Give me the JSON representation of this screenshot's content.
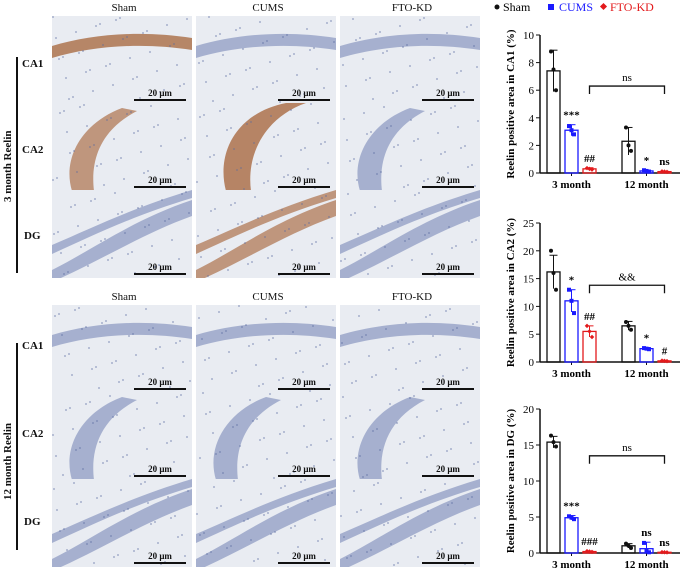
{
  "legend": [
    {
      "name": "Sham",
      "color": "#111111",
      "marker": "circle"
    },
    {
      "name": "CUMS",
      "color": "#1a1aff",
      "marker": "square"
    },
    {
      "name": "FTO-KD",
      "color": "#e31a1c",
      "marker": "diamond"
    }
  ],
  "micro": {
    "columns": [
      "Sham",
      "CUMS",
      "FTO-KD"
    ],
    "blocks": [
      {
        "title": "3 month Reelin",
        "rows": [
          "CA1",
          "CA2",
          "DG"
        ]
      },
      {
        "title": "12 month Reelin",
        "rows": [
          "CA1",
          "CA2",
          "DG"
        ]
      }
    ],
    "scale_label": "20 μm",
    "colors": {
      "background": "#e9ecf2",
      "hematoxylin": "#6f7fb3",
      "reelin_brown": "#a8683f"
    }
  },
  "chart_data": [
    {
      "type": "bar",
      "ylabel": "Reelin positive area in CA1 (%)",
      "ylim": [
        0,
        10
      ],
      "yticks": [
        0,
        2,
        4,
        6,
        8,
        10
      ],
      "categories": [
        "3 month",
        "12 month"
      ],
      "series": [
        {
          "name": "Sham",
          "values": [
            7.4,
            2.3
          ],
          "errors": [
            1.5,
            1.0
          ],
          "points": [
            [
              8.8,
              7.5,
              6.0
            ],
            [
              3.3,
              2.0,
              1.6
            ]
          ]
        },
        {
          "name": "CUMS",
          "values": [
            3.1,
            0.15
          ],
          "errors": [
            0.4,
            0.05
          ],
          "points": [
            [
              3.4,
              3.1,
              2.8
            ],
            [
              0.2,
              0.15,
              0.1
            ]
          ]
        },
        {
          "name": "FTO-KD",
          "values": [
            0.3,
            0.1
          ],
          "errors": [
            0.08,
            0.03
          ],
          "points": [
            [
              0.35,
              0.3,
              0.25
            ],
            [
              0.12,
              0.1,
              0.08
            ]
          ]
        }
      ],
      "annotations": [
        {
          "group": 0,
          "series": 1,
          "text": "***"
        },
        {
          "group": 0,
          "series": 2,
          "text": "##"
        },
        {
          "group": 1,
          "series": 1,
          "text": "*"
        },
        {
          "group": 1,
          "series": 2,
          "text": "ns"
        }
      ],
      "bracket": {
        "text": "ns",
        "y": 6.3
      }
    },
    {
      "type": "bar",
      "ylabel": "Reelin positive area in CA2 (%)",
      "ylim": [
        0,
        25
      ],
      "yticks": [
        0,
        5,
        10,
        15,
        20,
        25
      ],
      "categories": [
        "3 month",
        "12 month"
      ],
      "series": [
        {
          "name": "Sham",
          "values": [
            16.2,
            6.5
          ],
          "errors": [
            3.0,
            0.8
          ],
          "points": [
            [
              20.0,
              16.0,
              13.0
            ],
            [
              7.2,
              6.5,
              5.8
            ]
          ]
        },
        {
          "name": "CUMS",
          "values": [
            11.0,
            2.4
          ],
          "errors": [
            2.0,
            0.2
          ],
          "points": [
            [
              13.0,
              11.0,
              8.8
            ],
            [
              2.5,
              2.4,
              2.3
            ]
          ]
        },
        {
          "name": "FTO-KD",
          "values": [
            5.5,
            0.2
          ],
          "errors": [
            1.0,
            0.05
          ],
          "points": [
            [
              6.5,
              5.5,
              4.5
            ],
            [
              0.25,
              0.2,
              0.15
            ]
          ]
        }
      ],
      "annotations": [
        {
          "group": 0,
          "series": 1,
          "text": "*"
        },
        {
          "group": 0,
          "series": 2,
          "text": "##"
        },
        {
          "group": 1,
          "series": 1,
          "text": "*"
        },
        {
          "group": 1,
          "series": 2,
          "text": "#"
        }
      ],
      "bracket": {
        "text": "&&",
        "y": 13.8
      }
    },
    {
      "type": "bar",
      "ylabel": "Reelin positive area in DG (%)",
      "ylim": [
        0,
        20
      ],
      "yticks": [
        0,
        5,
        10,
        15,
        20
      ],
      "categories": [
        "3 month",
        "12 month"
      ],
      "series": [
        {
          "name": "Sham",
          "values": [
            15.4,
            1.0
          ],
          "errors": [
            0.8,
            0.3
          ],
          "points": [
            [
              16.3,
              15.4,
              14.8
            ],
            [
              1.3,
              1.0,
              0.7
            ]
          ]
        },
        {
          "name": "CUMS",
          "values": [
            4.9,
            0.6
          ],
          "errors": [
            0.3,
            0.9
          ],
          "points": [
            [
              5.1,
              4.9,
              4.7
            ],
            [
              1.4,
              0.3,
              0.1
            ]
          ]
        },
        {
          "name": "FTO-KD",
          "values": [
            0.2,
            0.1
          ],
          "errors": [
            0.05,
            0.03
          ],
          "points": [
            [
              0.25,
              0.2,
              0.15
            ],
            [
              0.12,
              0.1,
              0.08
            ]
          ]
        }
      ],
      "annotations": [
        {
          "group": 0,
          "series": 1,
          "text": "***"
        },
        {
          "group": 0,
          "series": 2,
          "text": "###"
        },
        {
          "group": 1,
          "series": 1,
          "text": "ns"
        },
        {
          "group": 1,
          "series": 2,
          "text": "ns"
        }
      ],
      "bracket": {
        "text": "ns",
        "y": 13.5
      }
    }
  ]
}
